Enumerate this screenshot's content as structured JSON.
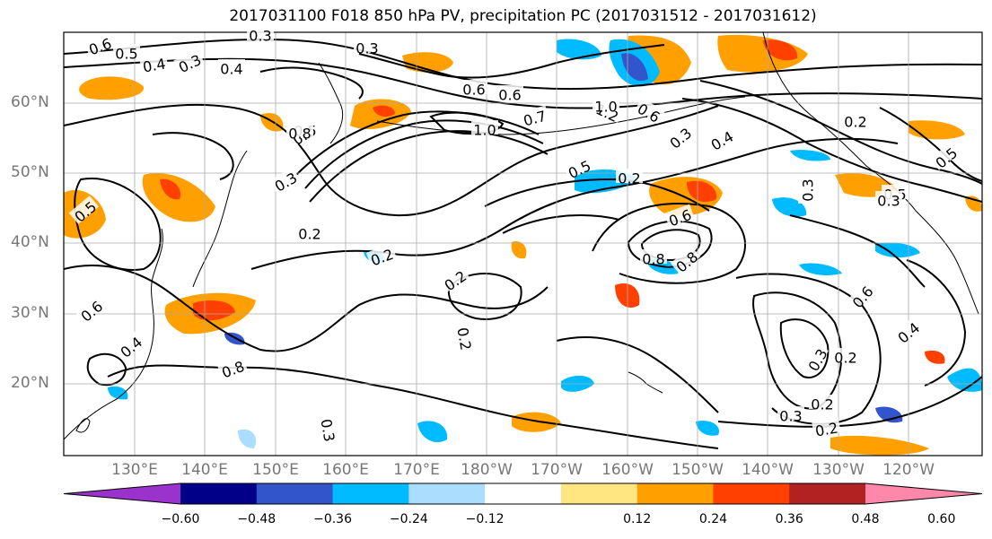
{
  "title": "2017031100 F018 850 hPa PV, precipitation PC (2017031512 - 2017031612)",
  "lat_labels": [
    "60°N",
    "50°N",
    "40°N",
    "30°N",
    "20°N"
  ],
  "lon_labels": [
    "130°E",
    "140°E",
    "150°E",
    "160°E",
    "170°E",
    "180°W",
    "170°W",
    "160°W",
    "150°W",
    "140°W",
    "130°W",
    "120°W"
  ],
  "colorbar": {
    "colors": [
      "#9933cc",
      "#000088",
      "#3355cc",
      "#00bbff",
      "#aaddff",
      "#ffffff",
      "#ffe680",
      "#ffa000",
      "#ff4000",
      "#b22222",
      "#ff88aa"
    ],
    "tick_labels": [
      "−0.60",
      "−0.48",
      "−0.36",
      "−0.24",
      "−0.12",
      "0.12",
      "0.24",
      "0.36",
      "0.48",
      "0.60"
    ]
  },
  "contour_labels": [
    "0.6",
    "0.5",
    "0.4",
    "0.3",
    "0.3",
    "0.4",
    "0.6",
    "0.5",
    "0.3",
    "0.6",
    "0.6",
    "0.7",
    "1.2",
    "1.0",
    "0.6",
    "0.8",
    "0.5",
    "0.2",
    "0.3",
    "0.2",
    "0.6",
    "0.8",
    "0.8",
    "1.0",
    "0.3",
    "0.4",
    "0.2",
    "0.2",
    "0.5",
    "0.6",
    "0.4",
    "0.8",
    "0.3",
    "0.2",
    "0.2",
    "0.3",
    "0.2",
    "0.3",
    "0.5",
    "0.2",
    "0.6",
    "0.4",
    "0.3",
    "0.2",
    "0.3",
    "0.5"
  ]
}
